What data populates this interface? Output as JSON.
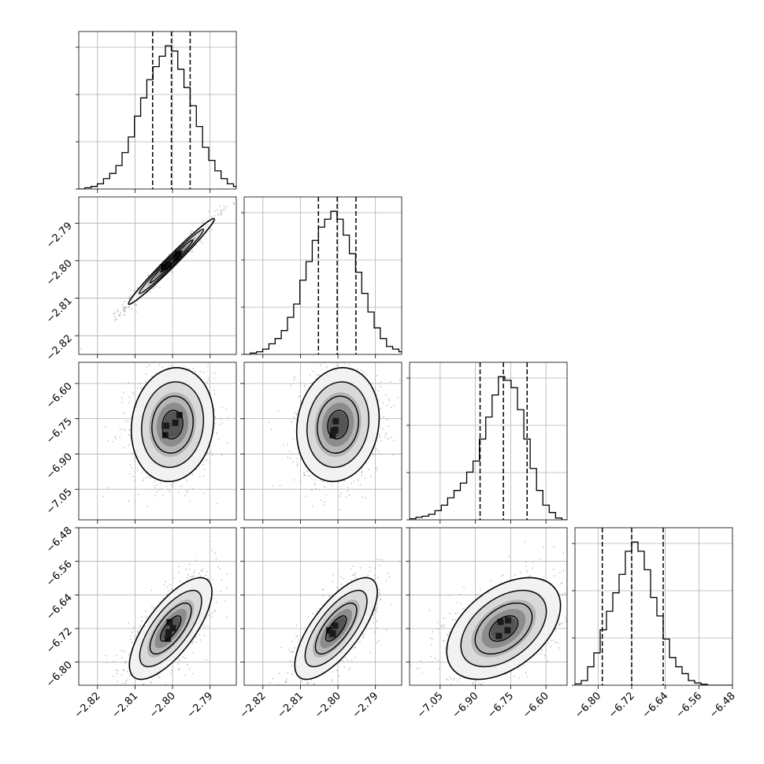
{
  "chart_data": {
    "type": "corner",
    "parameters": [
      {
        "index": 0,
        "axis_range": [
          -2.825,
          -2.783
        ],
        "x_ticks": [
          -2.82,
          -2.81,
          -2.8,
          -2.79
        ],
        "x_tick_labels": [
          "−2.82",
          "−2.81",
          "−2.80",
          "−2.79"
        ],
        "y_ticks": [],
        "y_tick_labels": [],
        "quantiles": [
          -2.8053,
          -2.8003,
          -2.7953
        ]
      },
      {
        "index": 1,
        "axis_range": [
          -2.825,
          -2.783
        ],
        "x_ticks": [
          -2.82,
          -2.81,
          -2.8,
          -2.79
        ],
        "x_tick_labels": [
          "−2.82",
          "−2.81",
          "−2.80",
          "−2.79"
        ],
        "y_ticks": [
          -2.82,
          -2.81,
          -2.8,
          -2.79
        ],
        "y_tick_labels": [
          "−2.82",
          "−2.81",
          "−2.80",
          "−2.79"
        ],
        "quantiles": [
          -2.8052,
          -2.8002,
          -2.7952
        ]
      },
      {
        "index": 2,
        "axis_range": [
          -7.18,
          -6.51
        ],
        "x_ticks": [
          -7.05,
          -6.9,
          -6.75,
          -6.6
        ],
        "x_tick_labels": [
          "−7.05",
          "−6.90",
          "−6.75",
          "−6.60"
        ],
        "y_ticks": [
          -7.05,
          -6.9,
          -6.75,
          -6.6
        ],
        "y_tick_labels": [
          "−7.05",
          "−6.90",
          "−6.75",
          "−6.60"
        ],
        "quantiles": [
          -6.88,
          -6.781,
          -6.68
        ]
      },
      {
        "index": 3,
        "axis_range": [
          -6.855,
          -6.48
        ],
        "x_ticks": [
          -6.8,
          -6.72,
          -6.64,
          -6.56,
          -6.48
        ],
        "x_tick_labels": [
          "−6.80",
          "−6.72",
          "−6.64",
          "−6.56",
          "−6.48"
        ],
        "y_ticks": [
          -6.8,
          -6.72,
          -6.64,
          -6.56,
          -6.48
        ],
        "y_tick_labels": [
          "−6.80",
          "−6.72",
          "−6.64",
          "−6.56",
          "−6.48"
        ],
        "quantiles": [
          -6.79,
          -6.72,
          -6.645
        ]
      }
    ],
    "histograms": [
      {
        "param": 0,
        "bin_start": -2.825,
        "bin_width": 0.00165,
        "counts": [
          0,
          0.5,
          1,
          2,
          4,
          6,
          9,
          14,
          20,
          28,
          35,
          42,
          47,
          51,
          55,
          53,
          46,
          39,
          32,
          24,
          16,
          11,
          7,
          4,
          2,
          1,
          0
        ]
      },
      {
        "param": 1,
        "bin_start": -2.825,
        "bin_width": 0.00165,
        "counts": [
          0,
          0.5,
          1,
          2,
          4,
          6,
          9,
          14,
          19,
          28,
          35,
          43,
          48,
          51,
          54,
          51,
          45,
          38,
          31,
          23,
          16,
          10,
          6,
          3,
          2,
          1,
          0
        ]
      },
      {
        "param": 2,
        "bin_start": -7.18,
        "bin_width": 0.027,
        "counts": [
          0.3,
          0.7,
          1,
          1.5,
          2.5,
          4,
          6,
          8,
          10,
          13,
          16,
          22,
          28,
          34,
          39,
          38,
          36,
          30,
          22,
          14,
          8,
          4,
          2,
          0.5,
          0
        ]
      },
      {
        "param": 3,
        "bin_start": -6.855,
        "bin_width": 0.015,
        "counts": [
          0.3,
          1,
          4,
          7,
          12,
          16,
          20,
          24,
          29,
          31,
          29,
          25,
          19,
          15,
          10,
          6,
          4,
          2.5,
          1,
          0.5,
          0.2,
          0,
          0,
          0,
          0
        ]
      }
    ],
    "density_2d": [
      {
        "x_param": 0,
        "y_param": 1,
        "center": [
          -2.8003,
          -2.8002
        ],
        "sigma": [
          0.0052,
          0.0052
        ],
        "correlation": 0.985
      },
      {
        "x_param": 0,
        "y_param": 2,
        "center": [
          -2.8,
          -6.775
        ],
        "sigma": [
          0.005,
          0.11
        ],
        "correlation": 0.1
      },
      {
        "x_param": 1,
        "y_param": 2,
        "center": [
          -2.8,
          -6.775
        ],
        "sigma": [
          0.005,
          0.11
        ],
        "correlation": 0.12
      },
      {
        "x_param": 0,
        "y_param": 3,
        "center": [
          -2.8005,
          -6.72
        ],
        "sigma": [
          0.005,
          0.055
        ],
        "correlation": 0.72
      },
      {
        "x_param": 1,
        "y_param": 3,
        "center": [
          -2.8005,
          -6.72
        ],
        "sigma": [
          0.005,
          0.055
        ],
        "correlation": 0.72
      },
      {
        "x_param": 2,
        "y_param": 3,
        "center": [
          -6.78,
          -6.72
        ],
        "sigma": [
          0.11,
          0.055
        ],
        "correlation": 0.45
      }
    ],
    "contour_levels_sigma": [
      0.5,
      1.0,
      1.5,
      2.0
    ],
    "grid": true
  }
}
